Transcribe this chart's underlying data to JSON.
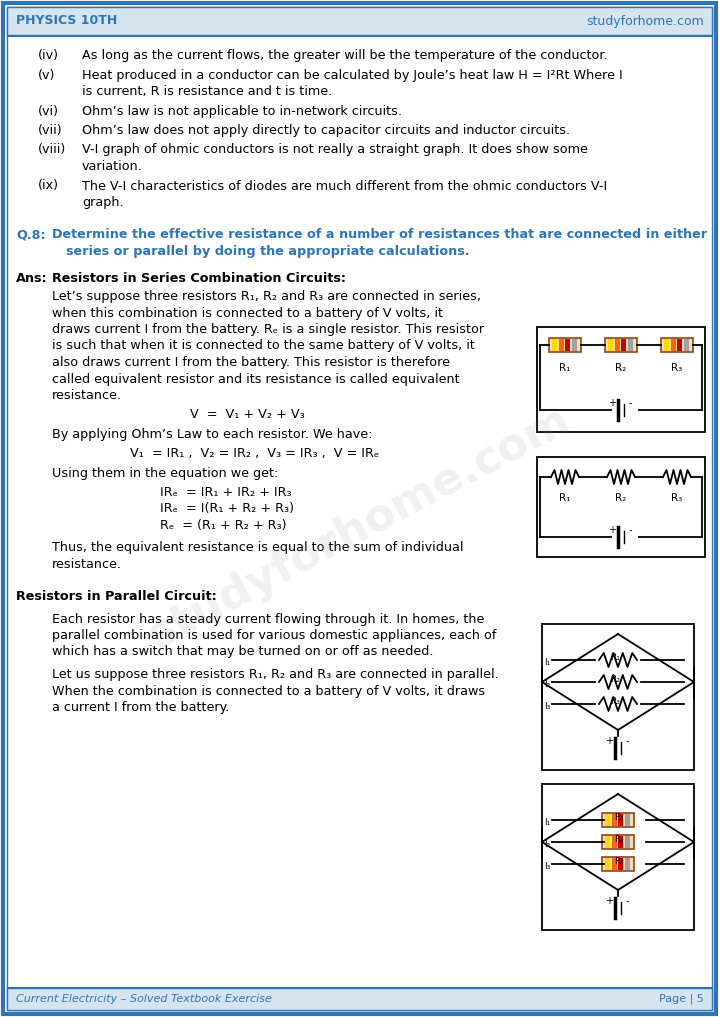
{
  "header_left": "PHYSICS 10TH",
  "header_right": "studyforhome.com",
  "footer_left": "Current Electricity – Solved Textbook Exercise",
  "footer_right": "Page | 5",
  "header_color": "#2E75B6",
  "border_color": "#2E75B6",
  "background_color": "#FFFFFF",
  "question_color": "#2E75B6",
  "items": [
    {
      "label": "(iv)",
      "text": "As long as the current flows, the greater will be the temperature of the conductor."
    },
    {
      "label": "(v)",
      "text1": "Heat produced in a conductor can be calculated by Joule’s heat law H = I²Rt Where I",
      "text2": "is current, R is resistance and t is time."
    },
    {
      "label": "(vi)",
      "text": "Ohm’s law is not applicable to in-network circuits."
    },
    {
      "label": "(vii)",
      "text": "Ohm’s law does not apply directly to capacitor circuits and inductor circuits."
    },
    {
      "label": "(viii)",
      "text1": "V-I graph of ohmic conductors is not really a straight graph. It does show some",
      "text2": "variation."
    },
    {
      "label": "(ix)",
      "text1": "The V-I characteristics of diodes are much different from the ohmic conductors V-I",
      "text2": "graph."
    }
  ],
  "q8_label": "Q.8:",
  "q8_line1": "Determine the effective resistance of a number of resistances that are connected in either",
  "q8_line2": "series or parallel by doing the appropriate calculations.",
  "ans_label": "Ans:",
  "s1_title": "Resistors in Series Combination Circuits:",
  "s1_lines": [
    "Let’s suppose three resistors R₁, R₂ and R₃ are connected in series,",
    "when this combination is connected to a battery of V volts, it",
    "draws current I from the battery. Rₑ is a single resistor. This resistor",
    "is such that when it is connected to the same battery of V volts, it",
    "also draws current I from the battery. This resistor is therefore",
    "called equivalent resistor and its resistance is called equivalent",
    "resistance."
  ],
  "eq1": "V  =  V₁ + V₂ + V₃",
  "s1_para2": "By applying Ohm’s Law to each resistor. We have:",
  "eq2": "V₁  = IR₁ ,  V₂ = IR₂ ,  V₃ = IR₃ ,  V = IRₑ",
  "s1_para3": "Using them in the equation we get:",
  "eq3": "IRₑ  = IR₁ + IR₂ + IR₃",
  "eq4": "IRₑ  = I(R₁ + R₂ + R₃)",
  "eq5": "Rₑ  = (R₁ + R₂ + R₃)",
  "s1_conc1": "Thus, the equivalent resistance is equal to the sum of individual",
  "s1_conc2": "resistance.",
  "s2_title": "Resistors in Parallel Circuit:",
  "s2_lines": [
    "Each resistor has a steady current flowing through it. In homes, the",
    "parallel combination is used for various domestic appliances, each of",
    "which has a switch that may be turned on or off as needed."
  ],
  "s2_lines2": [
    "Let us suppose three resistors R₁, R₂ and R₃ are connected in parallel.",
    "When the combination is connected to a battery of V volts, it draws",
    "a current I from the battery."
  ]
}
